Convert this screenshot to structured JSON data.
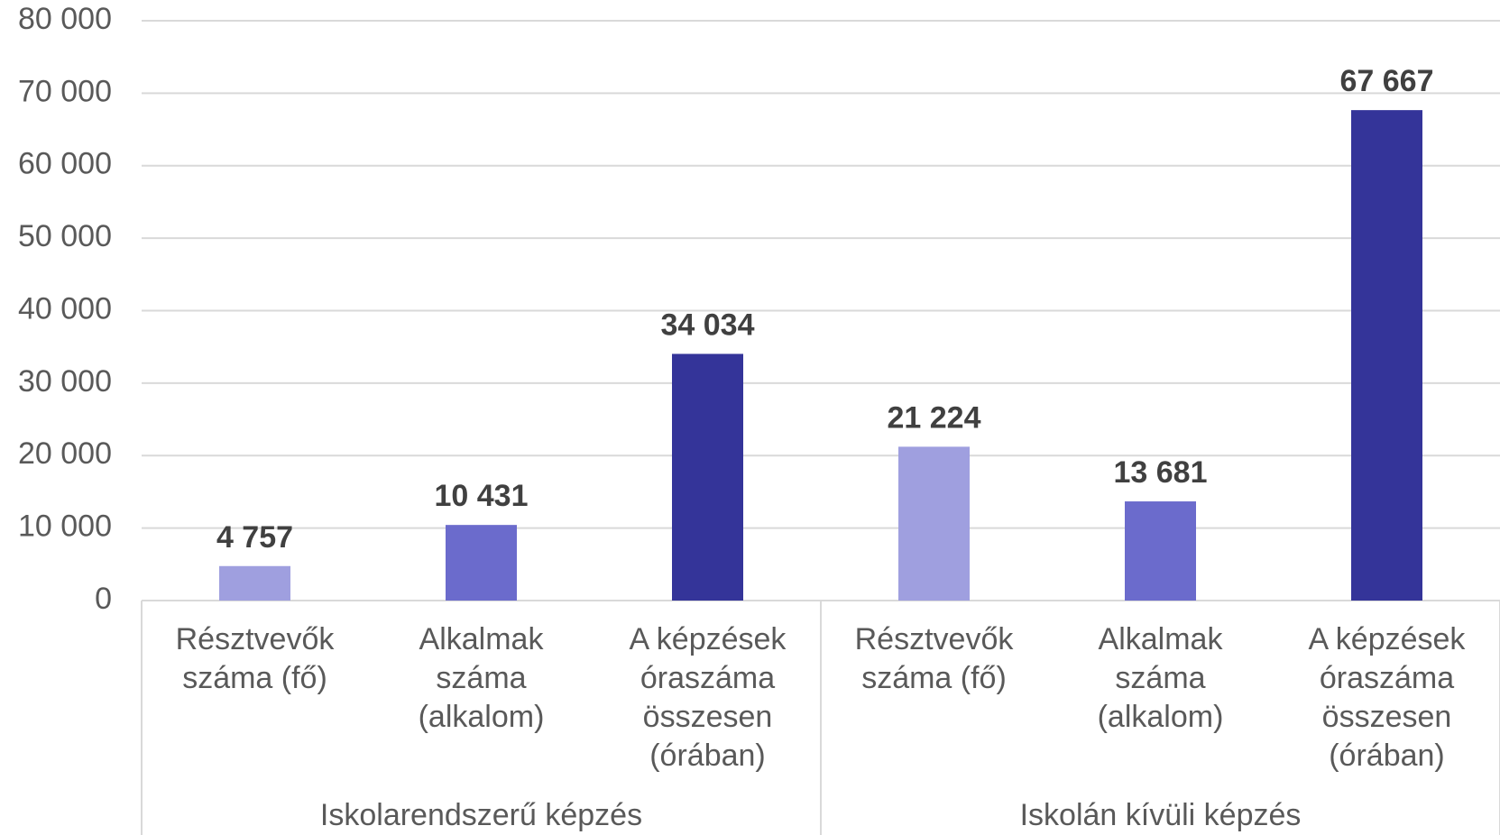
{
  "chart_data": {
    "type": "bar",
    "groups": [
      {
        "label": "Iskolarendszerű képzés",
        "categories": [
          "Résztvevők száma (fő)",
          "Alkalmak száma (alkalom)",
          "A képzések óraszáma összesen (órában)"
        ],
        "values": [
          4757,
          10431,
          34034
        ],
        "value_labels": [
          "4 757",
          "10 431",
          "34 034"
        ]
      },
      {
        "label": "Iskolán kívüli képzés",
        "categories": [
          "Résztvevők száma (fő)",
          "Alkalmak száma (alkalom)",
          "A képzések óraszáma összesen (órában)"
        ],
        "values": [
          21224,
          13681,
          67667
        ],
        "value_labels": [
          "21 224",
          "13 681",
          "67 667"
        ]
      }
    ],
    "colors": [
      "#9f9fdf",
      "#6b6bcc",
      "#343499"
    ],
    "ylim": [
      0,
      80000
    ],
    "yticks": [
      0,
      {
        "value": 10000,
        "label": "10 000"
      },
      {
        "value": 20000,
        "label": "20 000"
      },
      {
        "value": 30000,
        "label": "30 000"
      },
      {
        "value": 40000,
        "label": "40 000"
      },
      {
        "value": 50000,
        "label": "50 000"
      },
      {
        "value": 60000,
        "label": "60 000"
      },
      {
        "value": 70000,
        "label": "70 000"
      },
      {
        "value": 80000,
        "label": "80 000"
      }
    ],
    "grid": true
  }
}
